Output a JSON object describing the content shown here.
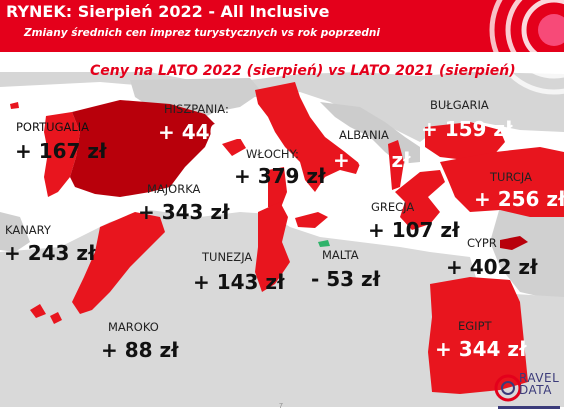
{
  "header": {
    "title": "RYNEK: Sierpień 2022 - All Inclusive",
    "subtitle": "Zmiany średnich cen imprez turystycznych vs rok poprzedni"
  },
  "banner": "Ceny na LATO 2022 (sierpień) vs  LATO 2021 (sierpień)",
  "colors": {
    "header": "#e4001b",
    "land_light": "#d9d9d9",
    "land_dark": "#bdbdbd",
    "highlight": "#e8151e",
    "highlight_dark": "#b8000b",
    "decrease": "#2fb36a"
  },
  "destinations": [
    {
      "id": "portugalia",
      "name": "PORTUGALIA",
      "change": "+ 167 zł"
    },
    {
      "id": "hiszpania",
      "name": "HISZPANIA:",
      "change": "+ 440 zł"
    },
    {
      "id": "majorka",
      "name": "MAJORKA",
      "change": "+ 343 zł"
    },
    {
      "id": "kanary",
      "name": "KANARY",
      "change": "+ 243 zł"
    },
    {
      "id": "maroko",
      "name": "MAROKO",
      "change": "+ 88 zł"
    },
    {
      "id": "tunezja",
      "name": "TUNEZJA",
      "change": "+ 143 zł"
    },
    {
      "id": "wlochy",
      "name": "WŁOCHY:",
      "change": "+ 379 zł"
    },
    {
      "id": "malta",
      "name": "MALTA",
      "change": "- 53 zł"
    },
    {
      "id": "albania",
      "name": "ALBANIA",
      "change": "+ 69 zł"
    },
    {
      "id": "grecja",
      "name": "GRECJA",
      "change": "+ 107 zł"
    },
    {
      "id": "bulgaria",
      "name": "BUŁGARIA",
      "change": "+ 159 zł"
    },
    {
      "id": "turcja",
      "name": "TURCJA",
      "change": "+ 256 zł"
    },
    {
      "id": "cypr",
      "name": "CYPR",
      "change": "+ 402 zł"
    },
    {
      "id": "egipt",
      "name": "EGIPT",
      "change": "+ 344 zł"
    }
  ],
  "page_number": "7",
  "logo": {
    "line1": "RAVEL",
    "line2": "DATA"
  }
}
